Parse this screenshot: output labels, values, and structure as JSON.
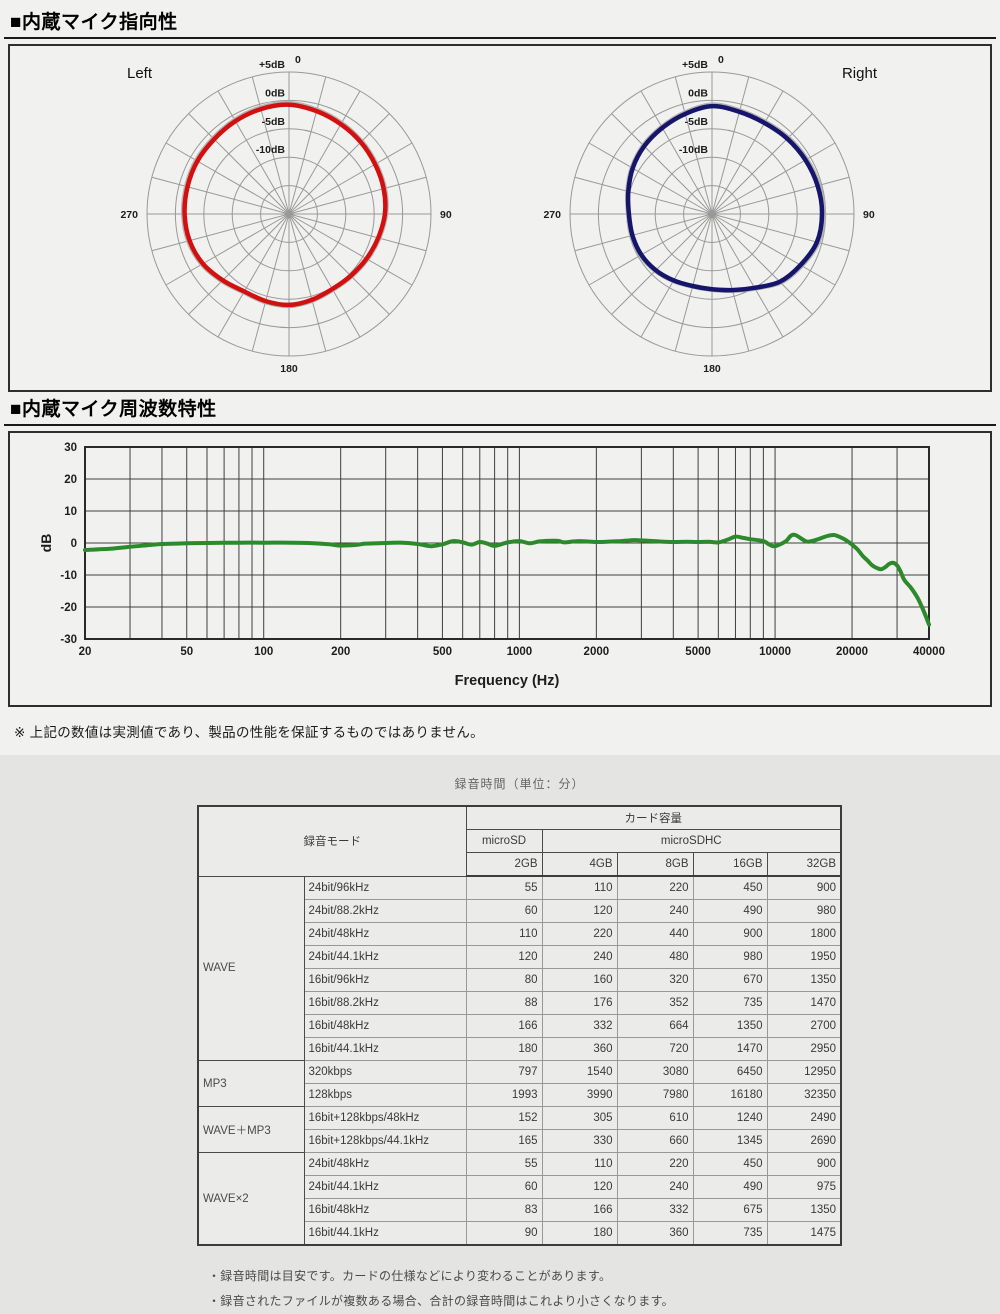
{
  "section_directivity": {
    "title": "■内蔵マイク指向性"
  },
  "section_frequency": {
    "title": "■内蔵マイク周波数特性"
  },
  "note": "※ 上記の数値は実測値であり、製品の性能を保証するものではありません。",
  "chart_data": [
    {
      "type": "polar",
      "title": "Left",
      "color": "#d40f0f",
      "ghost_color": "#b3b3b3",
      "rings_db": [
        "+5dB",
        "0dB",
        "-5dB",
        "-10dB"
      ],
      "ring_fracs": [
        1.0,
        0.8,
        0.6,
        0.4,
        0.2
      ],
      "ring_step_db": 5,
      "spoke_step_deg": 15,
      "angle_labels": {
        "top": "0",
        "right": "90",
        "bottom": "180",
        "left": "270"
      },
      "points_deg_frac": [
        [
          0,
          0.77
        ],
        [
          15,
          0.75
        ],
        [
          30,
          0.73
        ],
        [
          45,
          0.715
        ],
        [
          60,
          0.7
        ],
        [
          75,
          0.69
        ],
        [
          90,
          0.675
        ],
        [
          105,
          0.65
        ],
        [
          120,
          0.63
        ],
        [
          135,
          0.615
        ],
        [
          150,
          0.61
        ],
        [
          165,
          0.625
        ],
        [
          180,
          0.64
        ],
        [
          195,
          0.635
        ],
        [
          210,
          0.63
        ],
        [
          225,
          0.66
        ],
        [
          240,
          0.7
        ],
        [
          255,
          0.725
        ],
        [
          270,
          0.735
        ],
        [
          285,
          0.74
        ],
        [
          300,
          0.745
        ],
        [
          315,
          0.745
        ],
        [
          330,
          0.755
        ],
        [
          345,
          0.765
        ]
      ]
    },
    {
      "type": "polar",
      "title": "Right",
      "color": "#15156b",
      "ghost_color": "#b3b3b3",
      "rings_db": [
        "+5dB",
        "0dB",
        "-5dB",
        "-10dB"
      ],
      "ring_fracs": [
        1.0,
        0.8,
        0.6,
        0.4,
        0.2
      ],
      "ring_step_db": 5,
      "spoke_step_deg": 15,
      "angle_labels": {
        "top": "0",
        "right": "90",
        "bottom": "180",
        "left": "270"
      },
      "points_deg_frac": [
        [
          0,
          0.76
        ],
        [
          15,
          0.745
        ],
        [
          30,
          0.74
        ],
        [
          45,
          0.75
        ],
        [
          60,
          0.76
        ],
        [
          75,
          0.77
        ],
        [
          90,
          0.775
        ],
        [
          105,
          0.765
        ],
        [
          120,
          0.72
        ],
        [
          135,
          0.675
        ],
        [
          150,
          0.6
        ],
        [
          165,
          0.555
        ],
        [
          180,
          0.53
        ],
        [
          195,
          0.525
        ],
        [
          210,
          0.54
        ],
        [
          225,
          0.56
        ],
        [
          240,
          0.575
        ],
        [
          255,
          0.58
        ],
        [
          270,
          0.585
        ],
        [
          285,
          0.61
        ],
        [
          300,
          0.645
        ],
        [
          315,
          0.675
        ],
        [
          330,
          0.7
        ],
        [
          345,
          0.73
        ]
      ]
    },
    {
      "type": "line",
      "title": "",
      "xlabel": "Frequency (Hz)",
      "ylabel": "dB",
      "x_scale": "log",
      "xlim": [
        20,
        40000
      ],
      "ylim": [
        -30,
        30
      ],
      "x_ticks": [
        20,
        50,
        100,
        200,
        500,
        1000,
        2000,
        5000,
        10000,
        20000,
        40000
      ],
      "y_ticks": [
        30,
        20,
        10,
        0,
        -10,
        -20,
        -30
      ],
      "grid": true,
      "color": "#2c8a2c",
      "points": [
        [
          20,
          -2.2
        ],
        [
          25,
          -1.8
        ],
        [
          30,
          -1.2
        ],
        [
          35,
          -0.7
        ],
        [
          40,
          -0.3
        ],
        [
          50,
          -0.1
        ],
        [
          60,
          0
        ],
        [
          80,
          0.1
        ],
        [
          100,
          0.1
        ],
        [
          130,
          0.1
        ],
        [
          150,
          0
        ],
        [
          180,
          -0.4
        ],
        [
          200,
          -0.8
        ],
        [
          230,
          -0.6
        ],
        [
          250,
          -0.2
        ],
        [
          300,
          0
        ],
        [
          350,
          0.1
        ],
        [
          400,
          -0.3
        ],
        [
          450,
          -1.0
        ],
        [
          500,
          -0.4
        ],
        [
          550,
          0.6
        ],
        [
          600,
          0.2
        ],
        [
          650,
          -0.5
        ],
        [
          700,
          0.3
        ],
        [
          750,
          -0.2
        ],
        [
          800,
          -0.9
        ],
        [
          900,
          0.2
        ],
        [
          1000,
          0.6
        ],
        [
          1100,
          -0.1
        ],
        [
          1200,
          0.5
        ],
        [
          1400,
          0.7
        ],
        [
          1500,
          0.2
        ],
        [
          1700,
          0.6
        ],
        [
          2000,
          0.3
        ],
        [
          2200,
          0.4
        ],
        [
          2500,
          0.6
        ],
        [
          2800,
          0.9
        ],
        [
          3000,
          0.8
        ],
        [
          3500,
          0.5
        ],
        [
          4000,
          0.3
        ],
        [
          4500,
          0.4
        ],
        [
          5000,
          0.3
        ],
        [
          5500,
          0.4
        ],
        [
          6000,
          0.2
        ],
        [
          6500,
          1.0
        ],
        [
          7000,
          2.0
        ],
        [
          7500,
          1.6
        ],
        [
          8000,
          1.2
        ],
        [
          9000,
          0.6
        ],
        [
          9500,
          -0.5
        ],
        [
          10000,
          -1.0
        ],
        [
          11000,
          0.5
        ],
        [
          11500,
          2.2
        ],
        [
          12000,
          2.5
        ],
        [
          13000,
          0.8
        ],
        [
          13500,
          0.4
        ],
        [
          14500,
          1.0
        ],
        [
          16000,
          2.2
        ],
        [
          17000,
          2.5
        ],
        [
          18000,
          1.8
        ],
        [
          19000,
          0.8
        ],
        [
          20000,
          -0.5
        ],
        [
          21000,
          -2
        ],
        [
          22000,
          -4
        ],
        [
          23000,
          -5.5
        ],
        [
          24000,
          -7
        ],
        [
          25000,
          -7.8
        ],
        [
          26000,
          -8.2
        ],
        [
          27000,
          -7.5
        ],
        [
          28000,
          -6.5
        ],
        [
          29000,
          -6.2
        ],
        [
          30000,
          -7
        ],
        [
          31000,
          -9
        ],
        [
          32000,
          -11.5
        ],
        [
          34000,
          -14
        ],
        [
          36000,
          -17
        ],
        [
          38000,
          -21
        ],
        [
          40000,
          -25.5
        ]
      ]
    }
  ],
  "recording": {
    "caption": "録音時間（単位：分）",
    "table": {
      "headers": {
        "mode": "録音モード",
        "capacity": "カード容量",
        "microsd": "microSD",
        "microsdhc": "microSDHC",
        "sizes": [
          "2GB",
          "4GB",
          "8GB",
          "16GB",
          "32GB"
        ]
      },
      "groups": [
        {
          "label": "WAVE",
          "rows": [
            {
              "mode": "24bit/96kHz",
              "values": [
                55,
                110,
                220,
                450,
                900
              ]
            },
            {
              "mode": "24bit/88.2kHz",
              "values": [
                60,
                120,
                240,
                490,
                980
              ]
            },
            {
              "mode": "24bit/48kHz",
              "values": [
                110,
                220,
                440,
                900,
                1800
              ]
            },
            {
              "mode": "24bit/44.1kHz",
              "values": [
                120,
                240,
                480,
                980,
                1950
              ]
            },
            {
              "mode": "16bit/96kHz",
              "values": [
                80,
                160,
                320,
                670,
                1350
              ]
            },
            {
              "mode": "16bit/88.2kHz",
              "values": [
                88,
                176,
                352,
                735,
                1470
              ]
            },
            {
              "mode": "16bit/48kHz",
              "values": [
                166,
                332,
                664,
                1350,
                2700
              ]
            },
            {
              "mode": "16bit/44.1kHz",
              "values": [
                180,
                360,
                720,
                1470,
                2950
              ]
            }
          ]
        },
        {
          "label": "MP3",
          "rows": [
            {
              "mode": "320kbps",
              "values": [
                797,
                1540,
                3080,
                6450,
                12950
              ]
            },
            {
              "mode": "128kbps",
              "values": [
                1993,
                3990,
                7980,
                16180,
                32350
              ]
            }
          ]
        },
        {
          "label": "WAVE＋MP3",
          "rows": [
            {
              "mode": "16bit+128kbps/48kHz",
              "values": [
                152,
                305,
                610,
                1240,
                2490
              ]
            },
            {
              "mode": "16bit+128kbps/44.1kHz",
              "values": [
                165,
                330,
                660,
                1345,
                2690
              ]
            }
          ]
        },
        {
          "label": "WAVE×2",
          "rows": [
            {
              "mode": "24bit/48kHz",
              "values": [
                55,
                110,
                220,
                450,
                900
              ]
            },
            {
              "mode": "24bit/44.1kHz",
              "values": [
                60,
                120,
                240,
                490,
                975
              ]
            },
            {
              "mode": "16bit/48kHz",
              "values": [
                83,
                166,
                332,
                675,
                1350
              ]
            },
            {
              "mode": "16bit/44.1kHz",
              "values": [
                90,
                180,
                360,
                735,
                1475
              ]
            }
          ]
        }
      ]
    },
    "notes": [
      "・録音時間は目安です。カードの仕様などにより変わることがあります。",
      "・録音されたファイルが複数ある場合、合計の録音時間はこれより小さくなります。"
    ]
  }
}
